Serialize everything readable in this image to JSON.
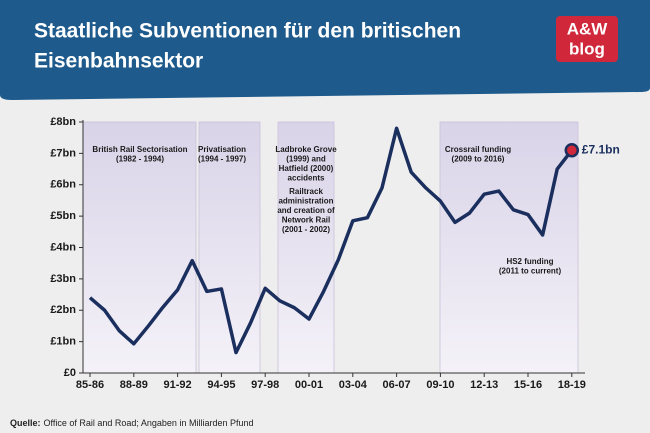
{
  "chart_data": {
    "type": "line",
    "title": [
      "Staatliche Subventionen für den britischen",
      "Eisenbahnsektor"
    ],
    "logo": [
      "A&W",
      "blog"
    ],
    "categories": [
      "85-86",
      null,
      null,
      "88-89",
      null,
      null,
      "91-92",
      null,
      null,
      "94-95",
      null,
      null,
      "97-98",
      null,
      null,
      "00-01",
      null,
      null,
      "03-04",
      null,
      null,
      "06-07",
      null,
      null,
      "09-10",
      null,
      null,
      "12-13",
      null,
      null,
      "15-16",
      null,
      null,
      "18-19"
    ],
    "values": [
      2.4,
      2.0,
      1.35,
      0.93,
      1.5,
      2.1,
      2.65,
      3.58,
      2.6,
      2.68,
      0.65,
      1.6,
      2.7,
      2.3,
      2.08,
      1.72,
      2.6,
      3.6,
      4.85,
      4.95,
      5.9,
      7.8,
      6.4,
      5.9,
      5.48,
      4.8,
      5.1,
      5.7,
      5.8,
      5.2,
      5.05,
      4.4,
      6.5,
      7.1
    ],
    "value_labels": [
      null,
      null,
      null,
      null,
      null,
      null,
      null,
      null,
      null,
      null,
      null,
      null,
      null,
      null,
      null,
      null,
      null,
      null,
      null,
      null,
      null,
      null,
      null,
      null,
      null,
      null,
      null,
      null,
      null,
      null,
      null,
      null,
      null,
      "£7.1bn"
    ],
    "color": "#1b2f5e",
    "ylim": [
      0,
      8
    ],
    "yticks": [
      {
        "value": 0,
        "label": "£0"
      },
      {
        "value": 1,
        "label": "£1bn"
      },
      {
        "value": 2,
        "label": "£2bn"
      },
      {
        "value": 3,
        "label": "£3bn"
      },
      {
        "value": 4,
        "label": "£4bn"
      },
      {
        "value": 5,
        "label": "£5bn"
      },
      {
        "value": 6,
        "label": "£6bn"
      },
      {
        "value": 7,
        "label": "£7bn"
      },
      {
        "value": 8,
        "label": "£8bn"
      }
    ],
    "annotations": [
      [
        "British Rail Sectorisation",
        "(1982 - 1994)"
      ],
      [
        "Privatisation",
        "(1994 - 1997)"
      ],
      [
        "Ladbroke Grove",
        "(1999) and",
        "Hatfield (2000)",
        "accidents"
      ],
      [
        "Railtrack",
        "administration",
        "and creation of",
        "Network Rail",
        "(2001 - 2002)"
      ],
      [
        "Crossrail funding",
        "(2009 to 2016)"
      ],
      [
        "HS2 funding",
        "(2011 to current)"
      ]
    ],
    "source_label": "Quelle:",
    "source_text": "Office of Rail and Road; Angaben in Milliarden Pfund"
  }
}
